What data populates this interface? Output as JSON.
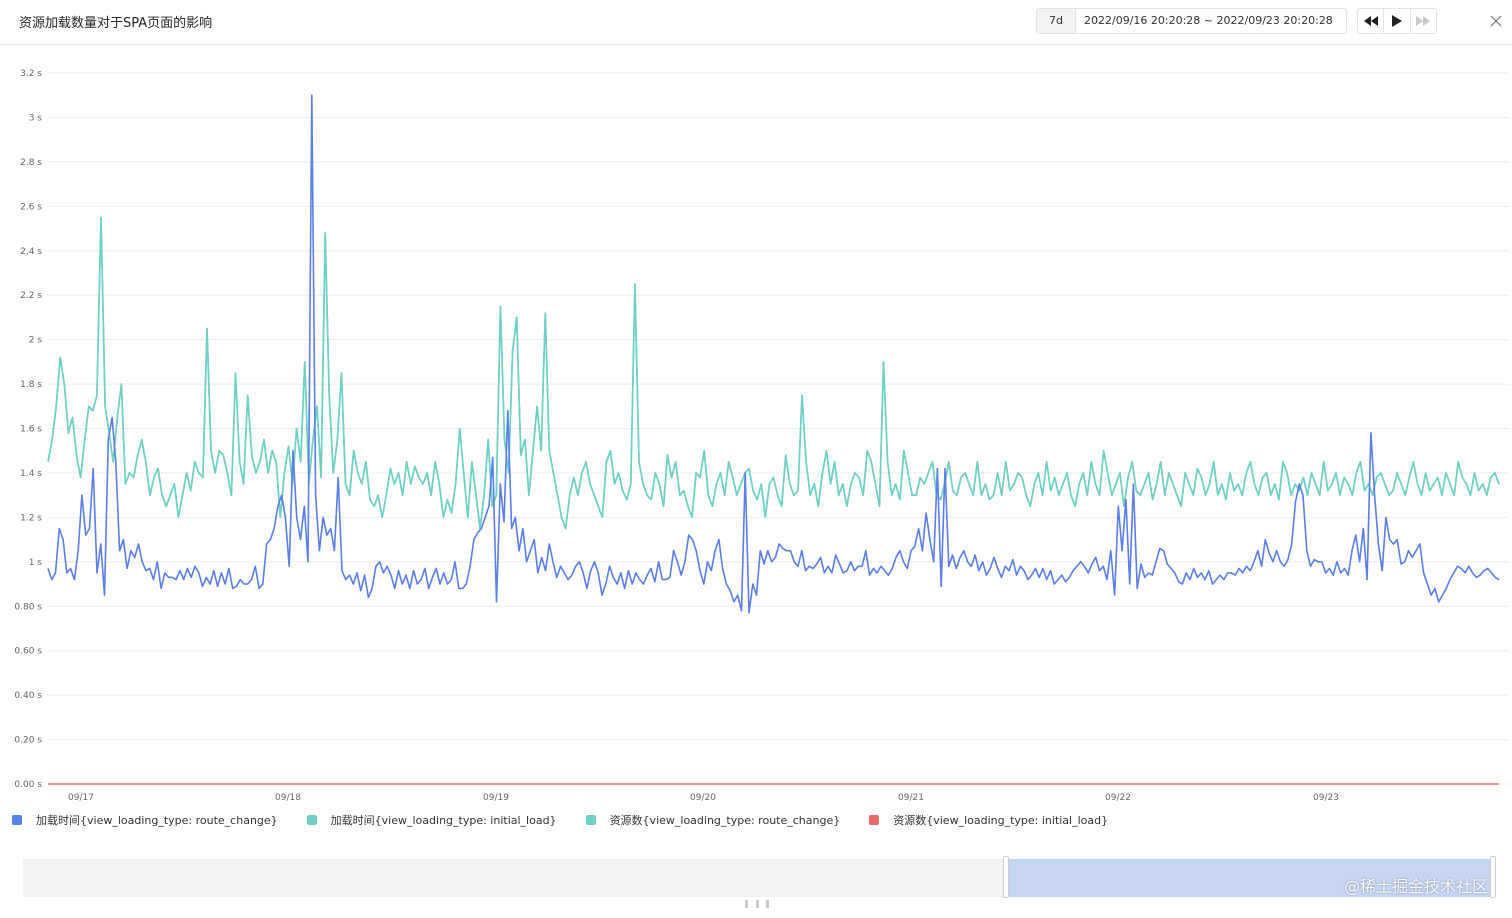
{
  "header": {
    "title": "资源加载数量对于SPA页面的影响",
    "range_tag": "7d",
    "range_text": "2022/09/16 20:20:28 ~ 2022/09/23 20:20:28"
  },
  "controls": {
    "rewind_icon": "rewind-icon",
    "play_icon": "play-icon",
    "forward_icon": "fast-forward-icon",
    "close_icon": "close-icon"
  },
  "watermark": "@稀土掘金技术社区",
  "colors": {
    "series0": "#5b7ee8",
    "series1": "#6fd0c4",
    "series2": "#6fd0c4",
    "series3": "#e86b6b",
    "grid": "#eeeeee",
    "axis_text": "#666666"
  },
  "chart_data": {
    "type": "line",
    "title": "资源加载数量对于SPA页面的影响",
    "ylim": [
      0,
      3.2
    ],
    "y_ticks": [
      "0.00 s",
      "0.20 s",
      "0.40 s",
      "0.60 s",
      "0.80 s",
      "1 s",
      "1.2 s",
      "1.4 s",
      "1.6 s",
      "1.8 s",
      "2 s",
      "2.2 s",
      "2.4 s",
      "2.6 s",
      "2.8 s",
      "3 s",
      "3.2 s"
    ],
    "x_start": "09/16 20:20",
    "x_end": "09/23 20:20",
    "x_ticks": [
      "09/17",
      "09/18",
      "09/19",
      "09/20",
      "09/21",
      "09/22",
      "09/23"
    ],
    "grid": true,
    "legend_position": "bottom-left",
    "series": [
      {
        "name": "加载时间{view_loading_type: route_change}",
        "values": [
          0.97,
          0.92,
          0.95,
          1.15,
          1.1,
          0.95,
          0.97,
          0.92,
          1.05,
          1.3,
          1.12,
          1.15,
          1.42,
          0.95,
          1.08,
          0.85,
          1.55,
          1.65,
          1.45,
          1.05,
          1.1,
          0.97,
          1.05,
          1.02,
          1.08,
          1.0,
          0.96,
          0.97,
          0.92,
          1.0,
          0.88,
          0.95,
          0.93,
          0.93,
          0.92,
          0.96,
          0.92,
          0.97,
          0.93,
          0.98,
          0.95,
          0.89,
          0.93,
          0.9,
          0.96,
          0.89,
          0.95,
          0.9,
          0.97,
          0.88,
          0.89,
          0.92,
          0.9,
          0.9,
          0.92,
          0.98,
          0.88,
          0.9,
          1.08,
          1.1,
          1.15,
          1.25,
          1.3,
          1.2,
          0.98,
          1.5,
          1.2,
          1.1,
          1.25,
          1.0,
          3.1,
          1.3,
          1.05,
          1.2,
          1.12,
          1.15,
          1.05,
          1.38,
          0.96,
          0.92,
          0.94,
          0.9,
          0.95,
          0.87,
          0.94,
          0.84,
          0.88,
          0.98,
          1.0,
          0.95,
          0.98,
          0.94,
          0.88,
          0.96,
          0.9,
          0.94,
          0.88,
          0.96,
          0.9,
          0.92,
          0.97,
          0.88,
          0.93,
          0.97,
          0.9,
          0.95,
          0.9,
          0.92,
          1.0,
          0.88,
          0.88,
          0.9,
          0.98,
          1.1,
          1.13,
          1.15,
          1.2,
          1.25,
          1.47,
          0.82,
          1.35,
          1.18,
          1.68,
          1.15,
          1.2,
          1.05,
          1.15,
          1.0,
          1.05,
          1.1,
          0.95,
          1.02,
          0.96,
          1.08,
          1.0,
          0.93,
          0.98,
          0.95,
          0.92,
          0.94,
          0.98,
          1.0,
          0.95,
          0.88,
          0.96,
          1.0,
          0.95,
          0.85,
          0.9,
          0.98,
          0.93,
          0.9,
          0.95,
          0.88,
          0.96,
          0.9,
          0.95,
          0.92,
          0.9,
          0.94,
          0.97,
          0.91,
          1.0,
          0.92,
          0.92,
          0.93,
          1.05,
          1.0,
          0.94,
          1.0,
          1.12,
          1.1,
          1.05,
          0.96,
          0.9,
          1.0,
          0.96,
          1.05,
          1.1,
          0.97,
          0.9,
          0.87,
          0.82,
          0.85,
          0.78,
          1.4,
          0.77,
          0.9,
          0.85,
          1.05,
          0.99,
          1.05,
          1.0,
          1.02,
          1.08,
          1.06,
          1.05,
          1.05,
          1.0,
          0.98,
          1.05,
          0.96,
          0.98,
          0.97,
          0.99,
          1.02,
          0.95,
          0.98,
          0.95,
          1.03,
          0.99,
          0.95,
          0.96,
          1.0,
          0.96,
          0.98,
          0.98,
          1.05,
          0.94,
          0.97,
          0.95,
          0.98,
          0.96,
          0.94,
          0.97,
          1.02,
          1.05,
          1.0,
          0.97,
          1.05,
          1.07,
          1.15,
          1.05,
          1.22,
          1.1,
          1.0,
          1.42,
          0.89,
          1.42,
          0.98,
          1.03,
          0.97,
          1.02,
          1.05,
          1.0,
          0.98,
          1.03,
          0.96,
          1.0,
          0.94,
          0.97,
          1.02,
          0.97,
          0.93,
          0.98,
          0.96,
          1.01,
          0.94,
          0.98,
          0.96,
          0.92,
          0.94,
          0.97,
          0.93,
          0.97,
          0.92,
          0.96,
          0.9,
          0.92,
          0.94,
          0.91,
          0.93,
          0.96,
          0.98,
          1.0,
          0.98,
          0.95,
          0.99,
          1.02,
          0.96,
          0.98,
          0.92,
          1.05,
          0.85,
          1.25,
          1.05,
          1.28,
          0.9,
          1.35,
          0.88,
          0.99,
          0.93,
          0.95,
          0.94,
          1.0,
          1.06,
          1.05,
          0.99,
          0.97,
          0.95,
          0.91,
          0.9,
          0.95,
          0.92,
          0.97,
          0.93,
          0.95,
          0.92,
          0.96,
          0.9,
          0.92,
          0.94,
          0.92,
          0.95,
          0.95,
          0.94,
          0.97,
          0.95,
          0.98,
          0.96,
          1.0,
          1.05,
          0.98,
          1.1,
          1.04,
          1.0,
          1.05,
          1.0,
          0.98,
          1.01,
          1.08,
          1.27,
          1.35,
          1.3,
          1.05,
          0.98,
          1.01,
          1.0,
          1.0,
          0.95,
          0.97,
          0.94,
          1.0,
          0.95,
          0.97,
          0.94,
          1.05,
          1.12,
          1.0,
          1.15,
          0.92,
          1.58,
          1.3,
          1.08,
          0.96,
          1.2,
          1.1,
          1.08,
          1.1,
          0.99,
          1.0,
          1.05,
          1.02,
          1.05,
          1.08,
          0.95,
          0.9,
          0.85,
          0.88,
          0.82,
          0.85,
          0.88,
          0.92,
          0.95,
          0.98,
          0.97,
          0.95,
          0.98,
          0.95,
          0.93,
          0.94,
          0.96,
          0.97,
          0.95,
          0.93,
          0.92
        ]
      },
      {
        "name": "加载时间{view_loading_type: initial_load}",
        "values": [
          1.45,
          1.55,
          1.7,
          1.92,
          1.8,
          1.58,
          1.65,
          1.48,
          1.38,
          1.55,
          1.7,
          1.68,
          1.75,
          2.55,
          1.7,
          1.58,
          1.45,
          1.65,
          1.8,
          1.35,
          1.4,
          1.38,
          1.48,
          1.55,
          1.45,
          1.3,
          1.38,
          1.42,
          1.3,
          1.25,
          1.3,
          1.35,
          1.2,
          1.3,
          1.4,
          1.32,
          1.45,
          1.4,
          1.38,
          2.05,
          1.5,
          1.4,
          1.5,
          1.48,
          1.4,
          1.3,
          1.85,
          1.45,
          1.35,
          1.75,
          1.48,
          1.4,
          1.45,
          1.55,
          1.4,
          1.5,
          1.45,
          1.2,
          1.4,
          1.52,
          1.35,
          1.6,
          1.45,
          1.9,
          1.35,
          1.55,
          1.7,
          1.38,
          2.48,
          1.75,
          1.4,
          1.55,
          1.85,
          1.35,
          1.3,
          1.5,
          1.4,
          1.35,
          1.45,
          1.28,
          1.25,
          1.3,
          1.2,
          1.3,
          1.42,
          1.35,
          1.4,
          1.3,
          1.45,
          1.35,
          1.43,
          1.38,
          1.35,
          1.4,
          1.3,
          1.45,
          1.35,
          1.2,
          1.28,
          1.22,
          1.35,
          1.6,
          1.4,
          1.2,
          1.45,
          1.3,
          1.15,
          1.3,
          1.55,
          1.25,
          1.3,
          2.15,
          1.55,
          1.4,
          1.95,
          2.1,
          1.48,
          1.55,
          1.3,
          1.5,
          1.7,
          1.5,
          2.12,
          1.5,
          1.4,
          1.3,
          1.2,
          1.15,
          1.3,
          1.38,
          1.3,
          1.4,
          1.45,
          1.35,
          1.3,
          1.25,
          1.2,
          1.45,
          1.5,
          1.35,
          1.4,
          1.32,
          1.28,
          1.35,
          2.25,
          1.45,
          1.35,
          1.3,
          1.28,
          1.4,
          1.35,
          1.25,
          1.48,
          1.38,
          1.45,
          1.3,
          1.32,
          1.25,
          1.2,
          1.4,
          1.38,
          1.5,
          1.3,
          1.25,
          1.35,
          1.4,
          1.3,
          1.45,
          1.38,
          1.3,
          1.35,
          1.4,
          1.42,
          1.32,
          1.28,
          1.35,
          1.2,
          1.35,
          1.38,
          1.3,
          1.25,
          1.48,
          1.35,
          1.3,
          1.32,
          1.75,
          1.45,
          1.3,
          1.35,
          1.25,
          1.4,
          1.5,
          1.35,
          1.45,
          1.3,
          1.35,
          1.25,
          1.35,
          1.4,
          1.38,
          1.3,
          1.5,
          1.45,
          1.35,
          1.25,
          1.9,
          1.45,
          1.3,
          1.35,
          1.28,
          1.5,
          1.4,
          1.3,
          1.3,
          1.38,
          1.35,
          1.4,
          1.45,
          1.3,
          1.28,
          1.35,
          1.45,
          1.32,
          1.3,
          1.38,
          1.4,
          1.35,
          1.3,
          1.45,
          1.3,
          1.35,
          1.28,
          1.3,
          1.4,
          1.3,
          1.45,
          1.32,
          1.35,
          1.4,
          1.38,
          1.3,
          1.25,
          1.35,
          1.4,
          1.3,
          1.45,
          1.32,
          1.38,
          1.3,
          1.35,
          1.4,
          1.3,
          1.25,
          1.35,
          1.4,
          1.3,
          1.45,
          1.35,
          1.3,
          1.5,
          1.4,
          1.3,
          1.35,
          1.4,
          1.25,
          1.38,
          1.45,
          1.32,
          1.3,
          1.35,
          1.4,
          1.28,
          1.35,
          1.45,
          1.3,
          1.4,
          1.35,
          1.3,
          1.25,
          1.4,
          1.35,
          1.3,
          1.42,
          1.38,
          1.3,
          1.35,
          1.45,
          1.3,
          1.35,
          1.28,
          1.4,
          1.32,
          1.35,
          1.3,
          1.4,
          1.45,
          1.35,
          1.3,
          1.38,
          1.4,
          1.3,
          1.35,
          1.28,
          1.45,
          1.4,
          1.3,
          1.35,
          1.32,
          1.38,
          1.3,
          1.4,
          1.35,
          1.3,
          1.45,
          1.32,
          1.35,
          1.4,
          1.3,
          1.38,
          1.35,
          1.3,
          1.4,
          1.45,
          1.32,
          1.35,
          1.3,
          1.38,
          1.4,
          1.35,
          1.3,
          1.32,
          1.4,
          1.35,
          1.3,
          1.38,
          1.45,
          1.35,
          1.3,
          1.4,
          1.32,
          1.35,
          1.38,
          1.3,
          1.4,
          1.35,
          1.3,
          1.45,
          1.38,
          1.35,
          1.3,
          1.4,
          1.32,
          1.35,
          1.3,
          1.38,
          1.4,
          1.35
        ]
      },
      {
        "name": "资源数{view_loading_type: route_change}",
        "values": [
          1.45,
          1.55,
          1.7,
          1.92,
          1.8,
          1.58,
          1.65,
          1.48,
          1.38,
          1.55,
          1.7,
          1.68,
          1.75,
          2.55,
          1.7,
          1.58,
          1.45,
          1.65,
          1.8,
          1.35,
          1.4,
          1.38,
          1.48,
          1.55,
          1.45,
          1.3,
          1.38,
          1.42,
          1.3,
          1.25,
          1.3,
          1.35,
          1.2,
          1.3,
          1.4,
          1.32,
          1.45,
          1.4,
          1.38,
          2.05,
          1.5,
          1.4,
          1.5,
          1.48,
          1.4,
          1.3,
          1.85,
          1.45,
          1.35,
          1.75,
          1.48,
          1.4,
          1.45,
          1.55,
          1.4,
          1.5,
          1.45,
          1.2,
          1.4,
          1.52,
          1.35,
          1.6,
          1.45,
          1.9,
          1.35,
          1.55,
          1.7,
          1.38,
          2.48,
          1.75,
          1.4,
          1.55,
          1.85,
          1.35,
          1.3,
          1.5,
          1.4,
          1.35,
          1.45,
          1.28,
          1.25,
          1.3,
          1.2,
          1.3,
          1.42,
          1.35,
          1.4,
          1.3,
          1.45,
          1.35,
          1.43,
          1.38,
          1.35,
          1.4,
          1.3,
          1.45,
          1.35,
          1.2,
          1.28,
          1.22,
          1.35,
          1.6,
          1.4,
          1.2,
          1.45,
          1.3,
          1.15,
          1.3,
          1.55,
          1.25,
          1.3,
          2.15,
          1.55,
          1.4,
          1.95,
          2.1,
          1.48,
          1.55,
          1.3,
          1.5,
          1.7,
          1.5,
          2.12,
          1.5,
          1.4,
          1.3,
          1.2,
          1.15,
          1.3,
          1.38,
          1.3,
          1.4,
          1.45,
          1.35,
          1.3,
          1.25,
          1.2,
          1.45,
          1.5,
          1.35,
          1.4,
          1.32,
          1.28,
          1.35,
          2.25,
          1.45,
          1.35,
          1.3,
          1.28,
          1.4,
          1.35,
          1.25,
          1.48,
          1.38,
          1.45,
          1.3,
          1.32,
          1.25,
          1.2,
          1.4,
          1.38,
          1.5,
          1.3,
          1.25,
          1.35,
          1.4,
          1.3,
          1.45,
          1.38,
          1.3,
          1.35,
          1.4,
          1.42,
          1.32,
          1.28,
          1.35,
          1.2,
          1.35,
          1.38,
          1.3,
          1.25,
          1.48,
          1.35,
          1.3,
          1.32,
          1.75,
          1.45,
          1.3,
          1.35,
          1.25,
          1.4,
          1.5,
          1.35,
          1.45,
          1.3,
          1.35,
          1.25,
          1.35,
          1.4,
          1.38,
          1.3,
          1.5,
          1.45,
          1.35,
          1.25,
          1.9,
          1.45,
          1.3,
          1.35,
          1.28,
          1.5,
          1.4,
          1.3,
          1.3,
          1.38,
          1.35,
          1.4,
          1.45,
          1.3,
          1.28,
          1.35,
          1.45,
          1.32,
          1.3,
          1.38,
          1.4,
          1.35,
          1.3,
          1.45,
          1.3,
          1.35,
          1.28,
          1.3,
          1.4,
          1.3,
          1.45,
          1.32,
          1.35,
          1.4,
          1.38,
          1.3,
          1.25,
          1.35,
          1.4,
          1.3,
          1.45,
          1.32,
          1.38,
          1.3,
          1.35,
          1.4,
          1.3,
          1.25,
          1.35,
          1.4,
          1.3,
          1.45,
          1.35,
          1.3,
          1.5,
          1.4,
          1.3,
          1.35,
          1.4,
          1.25,
          1.38,
          1.45,
          1.32,
          1.3,
          1.35,
          1.4,
          1.28,
          1.35,
          1.45,
          1.3,
          1.4,
          1.35,
          1.3,
          1.25,
          1.4,
          1.35,
          1.3,
          1.42,
          1.38,
          1.3,
          1.35,
          1.45,
          1.3,
          1.35,
          1.28,
          1.4,
          1.32,
          1.35,
          1.3,
          1.4,
          1.45,
          1.35,
          1.3,
          1.38,
          1.4,
          1.3,
          1.35,
          1.28,
          1.45,
          1.4,
          1.3,
          1.35,
          1.32,
          1.38,
          1.3,
          1.4,
          1.35,
          1.3,
          1.45,
          1.32,
          1.35,
          1.4,
          1.3,
          1.38,
          1.35,
          1.3,
          1.4,
          1.45,
          1.32,
          1.35,
          1.3,
          1.38,
          1.4,
          1.35,
          1.3,
          1.32,
          1.4,
          1.35,
          1.3,
          1.38,
          1.45,
          1.35,
          1.3,
          1.4,
          1.32,
          1.35,
          1.38,
          1.3,
          1.4,
          1.35,
          1.3,
          1.45,
          1.38,
          1.35,
          1.3,
          1.4,
          1.32,
          1.35,
          1.3,
          1.38,
          1.4,
          1.35
        ]
      },
      {
        "name": "资源数{view_loading_type: initial_load}",
        "values": [
          0,
          0
        ]
      }
    ]
  }
}
